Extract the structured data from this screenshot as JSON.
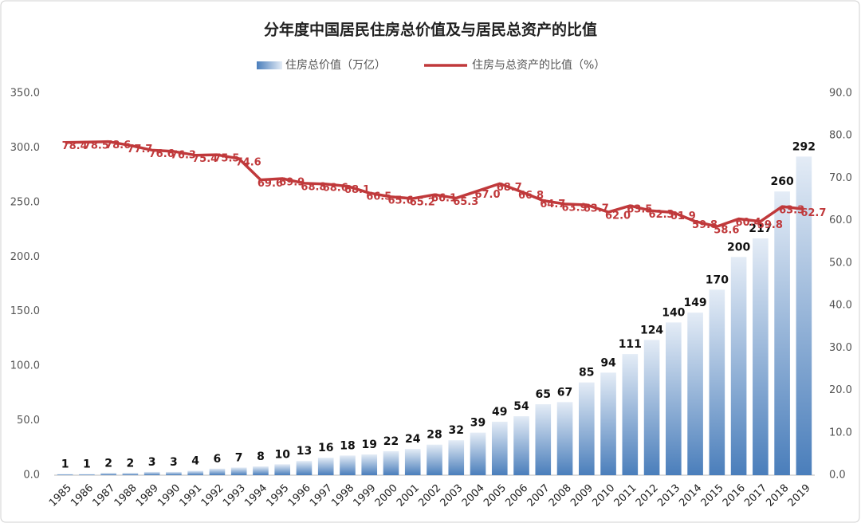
{
  "chart_data": {
    "type": "bar-line",
    "title": "分年度中国居民住房总价值及与居民总资产的比值",
    "categories": [
      "1985",
      "1986",
      "1987",
      "1988",
      "1989",
      "1990",
      "1991",
      "1992",
      "1993",
      "1994",
      "1995",
      "1996",
      "1997",
      "1998",
      "1999",
      "2000",
      "2001",
      "2002",
      "2003",
      "2004",
      "2005",
      "2006",
      "2007",
      "2008",
      "2009",
      "2010",
      "2011",
      "2012",
      "2013",
      "2014",
      "2015",
      "2016",
      "2017",
      "2018",
      "2019"
    ],
    "series": [
      {
        "name": "住房总价值（万亿）",
        "type": "bar",
        "color": "#4a7ebb",
        "values": [
          1,
          1,
          2,
          2,
          3,
          3,
          4,
          6,
          7,
          8,
          10,
          13,
          16,
          18,
          19,
          22,
          24,
          28,
          32,
          39,
          49,
          54,
          65,
          67,
          85,
          94,
          111,
          124,
          140,
          149,
          170,
          200,
          217,
          260,
          292
        ]
      },
      {
        "name": "住房与总资产的比值（%）",
        "type": "line",
        "axis": "y2",
        "color": "#c0393b",
        "values": [
          78.4,
          78.5,
          78.6,
          77.7,
          76.6,
          76.3,
          75.4,
          75.5,
          74.6,
          69.6,
          69.9,
          68.8,
          68.6,
          68.1,
          66.5,
          65.6,
          65.2,
          66.1,
          65.3,
          67.0,
          68.7,
          66.8,
          64.7,
          63.9,
          63.7,
          62.0,
          63.5,
          62.3,
          61.9,
          59.8,
          58.6,
          60.4,
          59.8,
          63.3,
          62.7
        ],
        "value_labels": [
          "78.4",
          "78.5",
          "78.6",
          "77.7",
          "76.6",
          "76.3",
          "75.4",
          "75.5",
          "74.6",
          "69.6",
          "69.9",
          "68.8",
          "68.6",
          "68.1",
          "66.5",
          "65.6",
          "65.2",
          "66.1",
          "65.3",
          "67.0",
          "68.7",
          "66.8",
          "64.7",
          "63.9",
          "63.7",
          "62.0",
          "63.5",
          "62.3",
          "61.9",
          "59.8",
          "58.6",
          "60.4",
          "59.8",
          "63.3",
          "62.7"
        ]
      }
    ],
    "ylim": [
      0,
      350
    ],
    "yticks": [
      {
        "value": 0,
        "label": "0.0"
      },
      {
        "value": 50,
        "label": "50.0"
      },
      {
        "value": 100,
        "label": "100.0"
      },
      {
        "value": 150,
        "label": "150.0"
      },
      {
        "value": 200,
        "label": "200.0"
      },
      {
        "value": 250,
        "label": "250.0"
      },
      {
        "value": 300,
        "label": "300.0"
      },
      {
        "value": 350,
        "label": "350.0"
      }
    ],
    "y2lim": [
      0,
      90
    ],
    "y2ticks": [
      {
        "value": 0,
        "label": "0.0"
      },
      {
        "value": 10,
        "label": "10.0"
      },
      {
        "value": 20,
        "label": "20.0"
      },
      {
        "value": 30,
        "label": "30.0"
      },
      {
        "value": 40,
        "label": "40.0"
      },
      {
        "value": 50,
        "label": "50.0"
      },
      {
        "value": 60,
        "label": "60.0"
      },
      {
        "value": 70,
        "label": "70.0"
      },
      {
        "value": 80,
        "label": "80.0"
      },
      {
        "value": 90,
        "label": "90.0"
      }
    ],
    "grid": false,
    "legend": "top"
  }
}
